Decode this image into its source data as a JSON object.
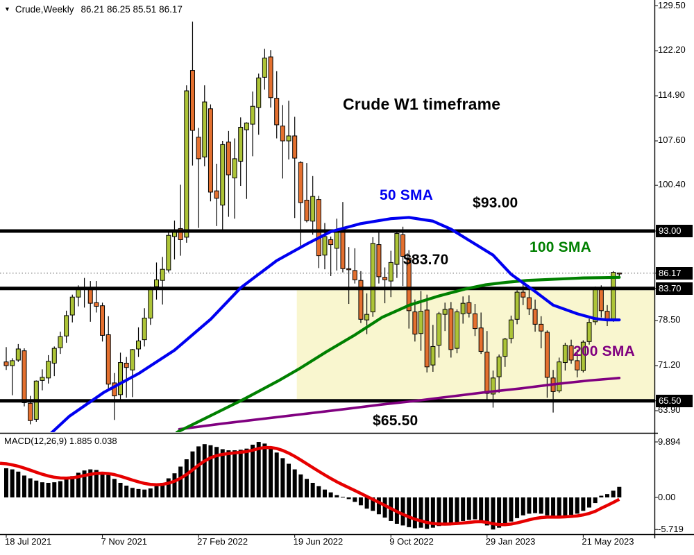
{
  "window": {
    "symbol": "Crude,Weekly",
    "ohlc": "86.21 86.25 85.51 86.17"
  },
  "annotations": {
    "headline": "Crude W1 timeframe",
    "sma50": "50 SMA",
    "sma100": "100 SMA",
    "sma200": "200 SMA",
    "level_93": "$93.00",
    "level_8370": "$83.70",
    "level_6550": "$65.50"
  },
  "indicator_label": "MACD(12,26,9) 1.885 0.038",
  "colors": {
    "bull_candle": "#adc437",
    "bear_candle": "#e4702f",
    "candle_border": "#000000",
    "wick": "#000000",
    "sma50": "#0000f0",
    "sma100": "#008000",
    "sma200": "#800080",
    "macd_bars": "#000000",
    "macd_signal": "#e60000",
    "level_line": "#000000",
    "highlight_zone": "#f9f6cf",
    "badge_bg": "#000000",
    "badge_text": "#ffffff"
  },
  "chart_data": [
    {
      "type": "candlestick",
      "title": "Crude Weekly (W1)",
      "ylim": [
        60.4,
        130.4
      ],
      "grid": false,
      "price_ticks": [
        {
          "label": "129.50",
          "value": 129.5,
          "badge": false
        },
        {
          "label": "122.20",
          "value": 122.2,
          "badge": false
        },
        {
          "label": "114.90",
          "value": 114.9,
          "badge": false
        },
        {
          "label": "107.60",
          "value": 107.6,
          "badge": false
        },
        {
          "label": "100.40",
          "value": 100.4,
          "badge": false
        },
        {
          "label": "93.00",
          "value": 93.0,
          "badge": true
        },
        {
          "label": "86.17",
          "value": 86.17,
          "badge": true
        },
        {
          "label": "83.70",
          "value": 83.7,
          "badge": true
        },
        {
          "label": "78.50",
          "value": 78.5,
          "badge": false
        },
        {
          "label": "71.20",
          "value": 71.2,
          "badge": false
        },
        {
          "label": "65.50",
          "value": 65.5,
          "badge": true
        },
        {
          "label": "63.90",
          "value": 63.9,
          "badge": false
        }
      ],
      "x_ticks": [
        {
          "label": "18 Jul 2021",
          "index": 0
        },
        {
          "label": "7 Nov 2021",
          "index": 16
        },
        {
          "label": "27 Feb 2022",
          "index": 32
        },
        {
          "label": "19 Jun 2022",
          "index": 48
        },
        {
          "label": "9 Oct 2022",
          "index": 64
        },
        {
          "label": "29 Jan 2023",
          "index": 80
        },
        {
          "label": "21 May 2023",
          "index": 96
        }
      ],
      "levels": [
        93.0,
        83.7,
        65.5
      ],
      "current_price": 86.17,
      "highlight_zone": {
        "from_index": 48,
        "to_right_edge": true,
        "top": 83.7,
        "bottom": 65.5
      },
      "candles_ohlc": [
        [
          71.8,
          74.2,
          70.5,
          71.2
        ],
        [
          71.2,
          72.4,
          66.4,
          72.0
        ],
        [
          72.1,
          74.7,
          71.8,
          73.9
        ],
        [
          73.6,
          74.0,
          64.6,
          65.2
        ],
        [
          65.1,
          66.3,
          61.7,
          62.3
        ],
        [
          62.5,
          68.8,
          62.1,
          68.7
        ],
        [
          68.8,
          70.6,
          67.2,
          69.3
        ],
        [
          69.2,
          72.9,
          68.3,
          71.9
        ],
        [
          71.6,
          74.3,
          69.5,
          74.0
        ],
        [
          74.1,
          76.7,
          73.1,
          75.9
        ],
        [
          76.0,
          80.1,
          74.9,
          79.3
        ],
        [
          79.4,
          82.7,
          78.2,
          82.3
        ],
        [
          82.3,
          84.2,
          80.8,
          83.8
        ],
        [
          83.9,
          85.4,
          80.6,
          83.6
        ],
        [
          83.5,
          84.9,
          78.3,
          81.3
        ],
        [
          81.4,
          84.9,
          79.8,
          80.8
        ],
        [
          80.9,
          81.4,
          75.1,
          76.1
        ],
        [
          76.2,
          79.2,
          67.4,
          68.2
        ],
        [
          68.4,
          70.0,
          62.4,
          66.3
        ],
        [
          66.5,
          73.3,
          65.4,
          71.7
        ],
        [
          71.6,
          72.6,
          66.0,
          70.9
        ],
        [
          70.5,
          73.9,
          66.1,
          73.8
        ],
        [
          73.9,
          77.4,
          72.6,
          75.2
        ],
        [
          75.4,
          80.5,
          74.3,
          78.9
        ],
        [
          78.9,
          84.0,
          77.8,
          83.8
        ],
        [
          84.0,
          87.9,
          81.9,
          85.1
        ],
        [
          85.0,
          88.8,
          81.1,
          86.8
        ],
        [
          86.7,
          93.2,
          86.3,
          92.3
        ],
        [
          92.1,
          94.7,
          88.4,
          93.1
        ],
        [
          93.4,
          100.5,
          89.0,
          91.6
        ],
        [
          92.0,
          116.6,
          91.1,
          115.7
        ],
        [
          119.0,
          126.9,
          103.6,
          109.3
        ],
        [
          108.2,
          109.7,
          93.5,
          104.7
        ],
        [
          105.0,
          116.6,
          103.5,
          113.9
        ],
        [
          112.8,
          113.5,
          97.8,
          99.3
        ],
        [
          99.5,
          103.9,
          93.8,
          98.3
        ],
        [
          97.2,
          107.6,
          92.9,
          107.0
        ],
        [
          107.4,
          109.2,
          95.3,
          102.1
        ],
        [
          101.6,
          108.0,
          95.0,
          104.7
        ],
        [
          104.3,
          111.4,
          100.3,
          109.8
        ],
        [
          109.4,
          110.6,
          98.2,
          110.5
        ],
        [
          110.3,
          115.6,
          105.1,
          113.2
        ],
        [
          113.0,
          118.5,
          108.6,
          117.8
        ],
        [
          117.9,
          122.5,
          115.9,
          121.0
        ],
        [
          121.2,
          122.3,
          113.0,
          114.6
        ],
        [
          114.5,
          118.9,
          108.0,
          110.2
        ],
        [
          110.0,
          113.4,
          101.5,
          107.6
        ],
        [
          107.6,
          114.1,
          104.6,
          108.4
        ],
        [
          108.4,
          111.5,
          95.1,
          104.8
        ],
        [
          104.1,
          104.3,
          90.6,
          97.6
        ],
        [
          98.0,
          104.0,
          94.4,
          94.7
        ],
        [
          94.6,
          101.9,
          92.4,
          98.6
        ],
        [
          98.1,
          98.7,
          87.0,
          89.0
        ],
        [
          89.1,
          94.3,
          86.8,
          92.1
        ],
        [
          91.6,
          92.1,
          85.7,
          90.8
        ],
        [
          90.2,
          95.0,
          86.6,
          93.1
        ],
        [
          93.4,
          97.7,
          86.3,
          86.9
        ],
        [
          86.9,
          90.4,
          81.2,
          86.8
        ],
        [
          86.6,
          90.2,
          84.5,
          85.1
        ],
        [
          85.0,
          86.5,
          78.1,
          78.7
        ],
        [
          78.6,
          82.9,
          76.3,
          79.5
        ],
        [
          79.9,
          92.0,
          79.1,
          91.0
        ],
        [
          90.8,
          93.1,
          84.5,
          85.6
        ],
        [
          85.5,
          87.1,
          81.3,
          85.1
        ],
        [
          84.9,
          89.8,
          82.3,
          87.9
        ],
        [
          87.6,
          93.1,
          85.4,
          92.6
        ],
        [
          92.4,
          93.7,
          84.1,
          88.9
        ],
        [
          88.6,
          89.9,
          77.2,
          80.1
        ],
        [
          79.9,
          81.9,
          75.1,
          76.3
        ],
        [
          76.4,
          83.3,
          73.6,
          80.0
        ],
        [
          80.2,
          82.7,
          70.1,
          71.0
        ],
        [
          71.3,
          77.8,
          70.2,
          74.3
        ],
        [
          74.5,
          79.9,
          72.5,
          79.6
        ],
        [
          79.5,
          81.4,
          76.8,
          80.3
        ],
        [
          80.4,
          81.5,
          72.5,
          73.8
        ],
        [
          74.0,
          80.3,
          73.2,
          79.9
        ],
        [
          79.6,
          82.4,
          78.0,
          81.3
        ],
        [
          81.4,
          82.6,
          79.0,
          79.7
        ],
        [
          79.6,
          81.2,
          76.0,
          77.2
        ],
        [
          77.3,
          79.8,
          73.1,
          73.5
        ],
        [
          73.4,
          76.8,
          65.3,
          66.7
        ],
        [
          66.6,
          70.4,
          64.4,
          69.2
        ],
        [
          69.4,
          73.0,
          66.8,
          72.6
        ],
        [
          72.7,
          75.7,
          71.0,
          75.5
        ],
        [
          75.6,
          79.3,
          74.8,
          78.6
        ],
        [
          78.7,
          83.4,
          77.9,
          83.1
        ],
        [
          83.1,
          85.0,
          81.0,
          82.3
        ],
        [
          82.2,
          83.6,
          79.4,
          80.4
        ],
        [
          80.3,
          81.9,
          76.7,
          77.9
        ],
        [
          77.9,
          79.2,
          74.0,
          76.8
        ],
        [
          76.6,
          76.9,
          66.0,
          69.3
        ],
        [
          69.2,
          70.5,
          63.6,
          67.0
        ],
        [
          67.1,
          72.5,
          66.8,
          71.8
        ],
        [
          71.7,
          74.9,
          70.4,
          74.5
        ],
        [
          74.4,
          75.4,
          71.5,
          72.1
        ],
        [
          72.0,
          73.8,
          69.3,
          70.5
        ],
        [
          70.4,
          75.3,
          70.1,
          75.0
        ],
        [
          75.1,
          78.8,
          74.6,
          78.2
        ],
        [
          78.3,
          84.0,
          77.8,
          83.5
        ],
        [
          83.6,
          84.2,
          79.0,
          80.1
        ],
        [
          80.0,
          81.0,
          77.6,
          78.6
        ],
        [
          78.8,
          86.5,
          78.3,
          86.3
        ],
        [
          86.21,
          86.25,
          85.51,
          86.17
        ]
      ],
      "overlays": [
        {
          "name": "50 SMA",
          "period": 50,
          "color_key": "sma50",
          "points": [
            [
              7.4,
              60.2
            ],
            [
              10.5,
              63.0
            ],
            [
              16.3,
              66.9
            ],
            [
              22,
              69.9
            ],
            [
              28,
              73.7
            ],
            [
              34,
              78.7
            ],
            [
              39,
              83.8
            ],
            [
              45,
              88.2
            ],
            [
              50,
              90.9
            ],
            [
              54,
              92.9
            ],
            [
              59,
              94.2
            ],
            [
              64,
              95.0
            ],
            [
              67,
              95.2
            ],
            [
              71,
              94.6
            ],
            [
              74,
              93.3
            ],
            [
              77,
              91.5
            ],
            [
              81,
              89.1
            ],
            [
              84,
              86.0
            ],
            [
              88,
              83.2
            ],
            [
              91,
              81.0
            ],
            [
              95,
              79.6
            ],
            [
              98,
              78.8
            ],
            [
              100,
              78.6
            ],
            [
              102,
              78.6
            ]
          ]
        },
        {
          "name": "100 SMA",
          "period": 100,
          "color_key": "sma100",
          "points": [
            [
              28.4,
              60.4
            ],
            [
              33.6,
              62.9
            ],
            [
              39.4,
              65.7
            ],
            [
              45.2,
              68.7
            ],
            [
              48.6,
              70.6
            ],
            [
              53.2,
              73.4
            ],
            [
              57.9,
              76.1
            ],
            [
              62.5,
              79.0
            ],
            [
              67.1,
              81.0
            ],
            [
              71.7,
              82.4
            ],
            [
              76.3,
              83.6
            ],
            [
              79.8,
              84.3
            ],
            [
              83.3,
              84.7
            ],
            [
              86.7,
              85.0
            ],
            [
              91.3,
              85.2
            ],
            [
              96,
              85.4
            ],
            [
              99.4,
              85.45
            ],
            [
              102,
              85.5
            ]
          ]
        },
        {
          "name": "200 SMA",
          "period": 200,
          "color_key": "sma200",
          "points": [
            [
              28.8,
              60.9
            ],
            [
              35.9,
              61.8
            ],
            [
              42.8,
              62.6
            ],
            [
              49.8,
              63.4
            ],
            [
              56.7,
              64.2
            ],
            [
              62.5,
              64.9
            ],
            [
              68.2,
              65.5
            ],
            [
              74,
              66.2
            ],
            [
              79.8,
              66.9
            ],
            [
              85.6,
              67.5
            ],
            [
              91.3,
              68.2
            ],
            [
              97.1,
              68.8
            ],
            [
              102,
              69.2
            ]
          ]
        }
      ]
    },
    {
      "type": "bar",
      "title": "MACD(12,26,9)",
      "params": [
        12,
        26,
        9
      ],
      "current_macd": 1.885,
      "current_signal": 0.038,
      "y_ticks": [
        {
          "label": "9.894",
          "value": 9.894
        },
        {
          "label": "0.00",
          "value": 0
        },
        {
          "label": "-5.719",
          "value": -5.719
        }
      ],
      "values": [
        5.2,
        5.0,
        4.6,
        3.9,
        3.4,
        3.0,
        2.7,
        2.6,
        2.7,
        2.9,
        3.3,
        3.8,
        4.4,
        4.8,
        5.0,
        4.9,
        4.5,
        4.0,
        3.3,
        2.6,
        2.1,
        1.7,
        1.5,
        1.4,
        1.6,
        2.0,
        2.6,
        3.4,
        4.3,
        5.5,
        6.8,
        8.2,
        9.1,
        9.5,
        9.3,
        9.0,
        8.6,
        8.4,
        8.4,
        8.5,
        8.7,
        9.4,
        9.89,
        9.6,
        8.9,
        8.0,
        7.0,
        6.0,
        5.0,
        4.1,
        3.3,
        2.6,
        2.0,
        1.4,
        0.9,
        0.4,
        0.1,
        -0.3,
        -0.8,
        -1.4,
        -2.0,
        -2.4,
        -3.0,
        -3.6,
        -4.2,
        -4.7,
        -5.0,
        -5.3,
        -5.5,
        -5.4,
        -5.6,
        -5.4,
        -5.1,
        -4.8,
        -4.6,
        -4.4,
        -4.2,
        -4.0,
        -3.9,
        -4.2,
        -5.0,
        -5.719,
        -5.4,
        -4.9,
        -4.3,
        -3.7,
        -3.2,
        -2.9,
        -2.8,
        -2.9,
        -3.2,
        -3.5,
        -3.5,
        -3.3,
        -3.1,
        -2.9,
        -2.4,
        -1.8,
        -1.0,
        0.3,
        0.6,
        1.2,
        1.885
      ],
      "signal_period": 9
    }
  ]
}
